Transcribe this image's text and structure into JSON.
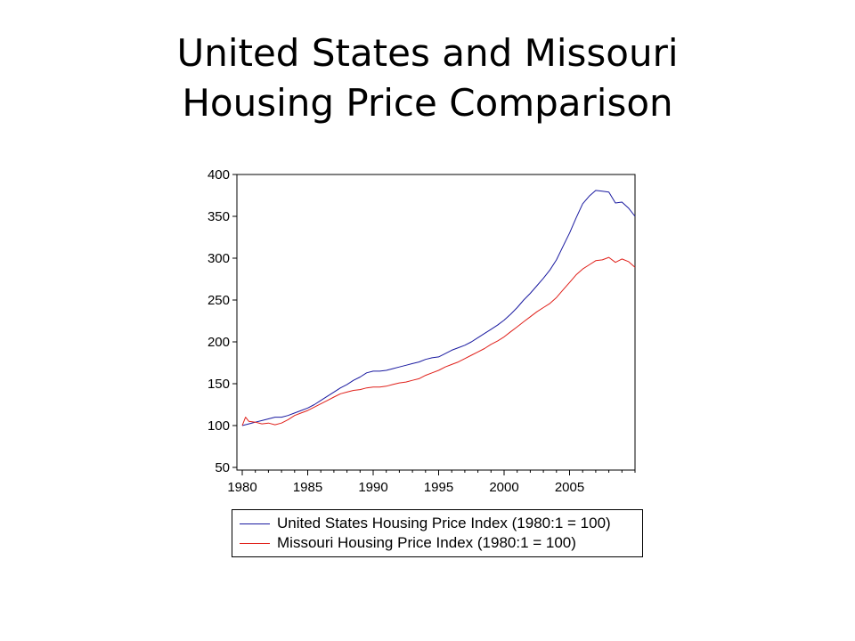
{
  "slide": {
    "title_line1": "United States and Missouri",
    "title_line2": "Housing Price Comparison"
  },
  "chart_data": {
    "type": "line",
    "xlim": [
      1980,
      2010
    ],
    "ylim": [
      50,
      400
    ],
    "x_ticks": [
      1980,
      1985,
      1990,
      1995,
      2000,
      2005
    ],
    "y_ticks": [
      50,
      100,
      150,
      200,
      250,
      300,
      350,
      400
    ],
    "grid": false,
    "legend_position": "bottom",
    "series": [
      {
        "name": "United States Housing Price Index (1980:1 = 100)",
        "color": "#1a1aa0",
        "points": [
          [
            1980.0,
            100
          ],
          [
            1980.5,
            102
          ],
          [
            1981.0,
            104
          ],
          [
            1981.5,
            106
          ],
          [
            1982.0,
            108
          ],
          [
            1982.5,
            110
          ],
          [
            1983.0,
            110
          ],
          [
            1983.5,
            112
          ],
          [
            1984.0,
            115
          ],
          [
            1984.5,
            118
          ],
          [
            1985.0,
            121
          ],
          [
            1985.5,
            125
          ],
          [
            1986.0,
            130
          ],
          [
            1986.5,
            135
          ],
          [
            1987.0,
            140
          ],
          [
            1987.5,
            145
          ],
          [
            1988.0,
            149
          ],
          [
            1988.5,
            154
          ],
          [
            1989.0,
            158
          ],
          [
            1989.5,
            163
          ],
          [
            1990.0,
            165
          ],
          [
            1990.5,
            165
          ],
          [
            1991.0,
            166
          ],
          [
            1991.5,
            168
          ],
          [
            1992.0,
            170
          ],
          [
            1992.5,
            172
          ],
          [
            1993.0,
            174
          ],
          [
            1993.5,
            176
          ],
          [
            1994.0,
            179
          ],
          [
            1994.5,
            181
          ],
          [
            1995.0,
            182
          ],
          [
            1995.5,
            186
          ],
          [
            1996.0,
            190
          ],
          [
            1996.5,
            193
          ],
          [
            1997.0,
            196
          ],
          [
            1997.5,
            200
          ],
          [
            1998.0,
            205
          ],
          [
            1998.5,
            210
          ],
          [
            1999.0,
            215
          ],
          [
            1999.5,
            220
          ],
          [
            2000.0,
            226
          ],
          [
            2000.5,
            233
          ],
          [
            2001.0,
            241
          ],
          [
            2001.5,
            250
          ],
          [
            2002.0,
            258
          ],
          [
            2002.5,
            267
          ],
          [
            2003.0,
            276
          ],
          [
            2003.5,
            286
          ],
          [
            2004.0,
            298
          ],
          [
            2004.5,
            314
          ],
          [
            2005.0,
            330
          ],
          [
            2005.5,
            348
          ],
          [
            2006.0,
            365
          ],
          [
            2006.5,
            374
          ],
          [
            2007.0,
            381
          ],
          [
            2007.5,
            380
          ],
          [
            2008.0,
            379
          ],
          [
            2008.5,
            366
          ],
          [
            2009.0,
            367
          ],
          [
            2009.5,
            360
          ],
          [
            2010.0,
            350
          ]
        ]
      },
      {
        "name": "Missouri Housing Price Index (1980:1 = 100)",
        "color": "#e0201a",
        "points": [
          [
            1980.0,
            100
          ],
          [
            1980.25,
            110
          ],
          [
            1980.5,
            105
          ],
          [
            1981.0,
            104
          ],
          [
            1981.5,
            102
          ],
          [
            1982.0,
            103
          ],
          [
            1982.5,
            101
          ],
          [
            1983.0,
            103
          ],
          [
            1983.5,
            107
          ],
          [
            1984.0,
            112
          ],
          [
            1984.5,
            115
          ],
          [
            1985.0,
            118
          ],
          [
            1985.5,
            122
          ],
          [
            1986.0,
            126
          ],
          [
            1986.5,
            130
          ],
          [
            1987.0,
            134
          ],
          [
            1987.5,
            138
          ],
          [
            1988.0,
            140
          ],
          [
            1988.5,
            142
          ],
          [
            1989.0,
            143
          ],
          [
            1989.5,
            145
          ],
          [
            1990.0,
            146
          ],
          [
            1990.5,
            146
          ],
          [
            1991.0,
            147
          ],
          [
            1991.5,
            149
          ],
          [
            1992.0,
            151
          ],
          [
            1992.5,
            152
          ],
          [
            1993.0,
            154
          ],
          [
            1993.5,
            156
          ],
          [
            1994.0,
            160
          ],
          [
            1994.5,
            163
          ],
          [
            1995.0,
            166
          ],
          [
            1995.5,
            170
          ],
          [
            1996.0,
            173
          ],
          [
            1996.5,
            176
          ],
          [
            1997.0,
            180
          ],
          [
            1997.5,
            184
          ],
          [
            1998.0,
            188
          ],
          [
            1998.5,
            192
          ],
          [
            1999.0,
            197
          ],
          [
            1999.5,
            201
          ],
          [
            2000.0,
            206
          ],
          [
            2000.5,
            212
          ],
          [
            2001.0,
            218
          ],
          [
            2001.5,
            224
          ],
          [
            2002.0,
            230
          ],
          [
            2002.5,
            236
          ],
          [
            2003.0,
            241
          ],
          [
            2003.5,
            246
          ],
          [
            2004.0,
            253
          ],
          [
            2004.5,
            262
          ],
          [
            2005.0,
            271
          ],
          [
            2005.5,
            280
          ],
          [
            2006.0,
            287
          ],
          [
            2006.5,
            292
          ],
          [
            2007.0,
            297
          ],
          [
            2007.5,
            298
          ],
          [
            2008.0,
            301
          ],
          [
            2008.5,
            295
          ],
          [
            2009.0,
            299
          ],
          [
            2009.5,
            296
          ],
          [
            2010.0,
            289
          ]
        ]
      }
    ]
  }
}
